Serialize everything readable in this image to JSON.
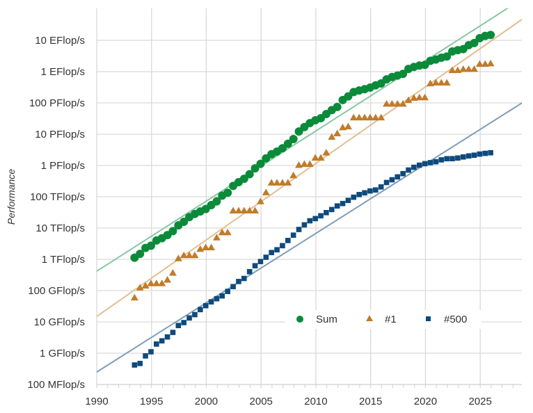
{
  "chart_data": {
    "type": "scatter",
    "title": "",
    "xlabel": "",
    "ylabel": "Performance",
    "y_scale": "log",
    "y_unit": "GFlop/s",
    "xlim": [
      1990,
      2028.8
    ],
    "ylim_gflops": [
      0.1,
      100000000000
    ],
    "x_ticks": [
      1990,
      1995,
      2000,
      2005,
      2010,
      2015,
      2020,
      2025
    ],
    "x_tick_labels": [
      "1990",
      "1995",
      "2000",
      "2005",
      "2010",
      "2015",
      "2020",
      "2025"
    ],
    "y_ticks_gflops": [
      0.1,
      1,
      10,
      100,
      1000,
      10000,
      100000,
      1000000,
      10000000,
      100000000,
      1000000000,
      10000000000
    ],
    "y_tick_labels": [
      "100 MFlop/s",
      "1 GFlop/s",
      "10 GFlop/s",
      "100 GFlop/s",
      "1 TFlop/s",
      "10 TFlop/s",
      "100 TFlop/s",
      "1 PFlop/s",
      "10 PFlop/s",
      "100 PFlop/s",
      "1 EFlop/s",
      "10 EFlop/s"
    ],
    "grid": true,
    "legend_position": "lower-right inside",
    "x_start": 1993.45,
    "x_step": 0.5,
    "series": [
      {
        "name": "Sum",
        "marker": "circle",
        "color": "#0b8a3a",
        "trend_color": "#86c8a0",
        "trend": [
          [
            1990,
            417
          ],
          [
            2029,
            230000000000
          ]
        ],
        "values": [
          1128,
          1493,
          2317,
          2732,
          3994,
          4720,
          5971,
          7998,
          12160,
          15870,
          22430,
          28270,
          33940,
          40600,
          54080,
          71200,
          108900,
          134500,
          222100,
          292900,
          375100,
          527700,
          810900,
          1127000,
          1690000,
          2300000,
          2790000,
          3540000,
          4950000,
          6970000,
          12200000,
          16900000,
          22600000,
          27900000,
          32400000,
          44200000,
          58900000,
          74200000,
          123400000,
          162000000,
          223000000,
          250000000,
          274000000,
          309000000,
          363000000,
          420000000,
          566000000,
          672000000,
          749000000,
          845000000,
          1220000000,
          1410000000,
          1560000000,
          1650000000,
          2210000000,
          2430000000,
          2790000000,
          3040000000,
          4400000000,
          4860000000,
          5240000000,
          7010000000,
          8210000000,
          11720000000,
          13840000000,
          14900000000
        ]
      },
      {
        "name": "#1",
        "marker": "triangle",
        "color": "#c07c2a",
        "trend_color": "#e3bd8f",
        "trend": [
          [
            1990,
            15
          ],
          [
            2029,
            52000000000
          ]
        ],
        "values": [
          59.7,
          124,
          143.4,
          170,
          170,
          170,
          220.4,
          368.2,
          1068,
          1338,
          1338,
          1338,
          2121,
          2379,
          2379,
          4938,
          7226,
          7226,
          35860,
          35860,
          35860,
          35860,
          35860,
          70720,
          136800,
          280600,
          280600,
          280600,
          280600,
          478200,
          1026000,
          1105000,
          1105000,
          1759000,
          1759000,
          2566000,
          8162000,
          10510000,
          16320000,
          17590000,
          33860000,
          33860000,
          33860000,
          33860000,
          33860000,
          33860000,
          93010000,
          93010000,
          93010000,
          93010000,
          122300000,
          143500000,
          148600000,
          148600000,
          415500000,
          442000000,
          442000000,
          442000000,
          1102000000,
          1102000000,
          1194000000,
          1194000000,
          1206000000,
          1742000000,
          1742000000,
          1809000000
        ]
      },
      {
        "name": "#500",
        "marker": "square",
        "color": "#0e4a7c",
        "trend_color": "#7f9cba",
        "trend": [
          [
            1990,
            0.25
          ],
          [
            2029,
            110000000
          ]
        ],
        "values": [
          0.42,
          0.47,
          0.82,
          1.11,
          1.96,
          2.49,
          3.31,
          4.62,
          7.67,
          9.51,
          13.39,
          17.12,
          24.73,
          33.1,
          43.8,
          55.1,
          67.8,
          94.3,
          134.3,
          195.8,
          245.1,
          403.4,
          624,
          850.6,
          1166,
          1646,
          2026,
          2737,
          4005,
          5929,
          9000,
          12640,
          17090,
          20050,
          24670,
          31110,
          39100,
          50900,
          60800,
          76500,
          96600,
          117800,
          133700,
          153400,
          164800,
          206300,
          286000,
          349300,
          432200,
          548700,
          715600,
          874800,
          1022000,
          1142000,
          1228000,
          1317000,
          1511000,
          1646000,
          1650000,
          1730000,
          1870000,
          2020000,
          2130000,
          2320000,
          2440000,
          2550000
        ]
      }
    ]
  }
}
